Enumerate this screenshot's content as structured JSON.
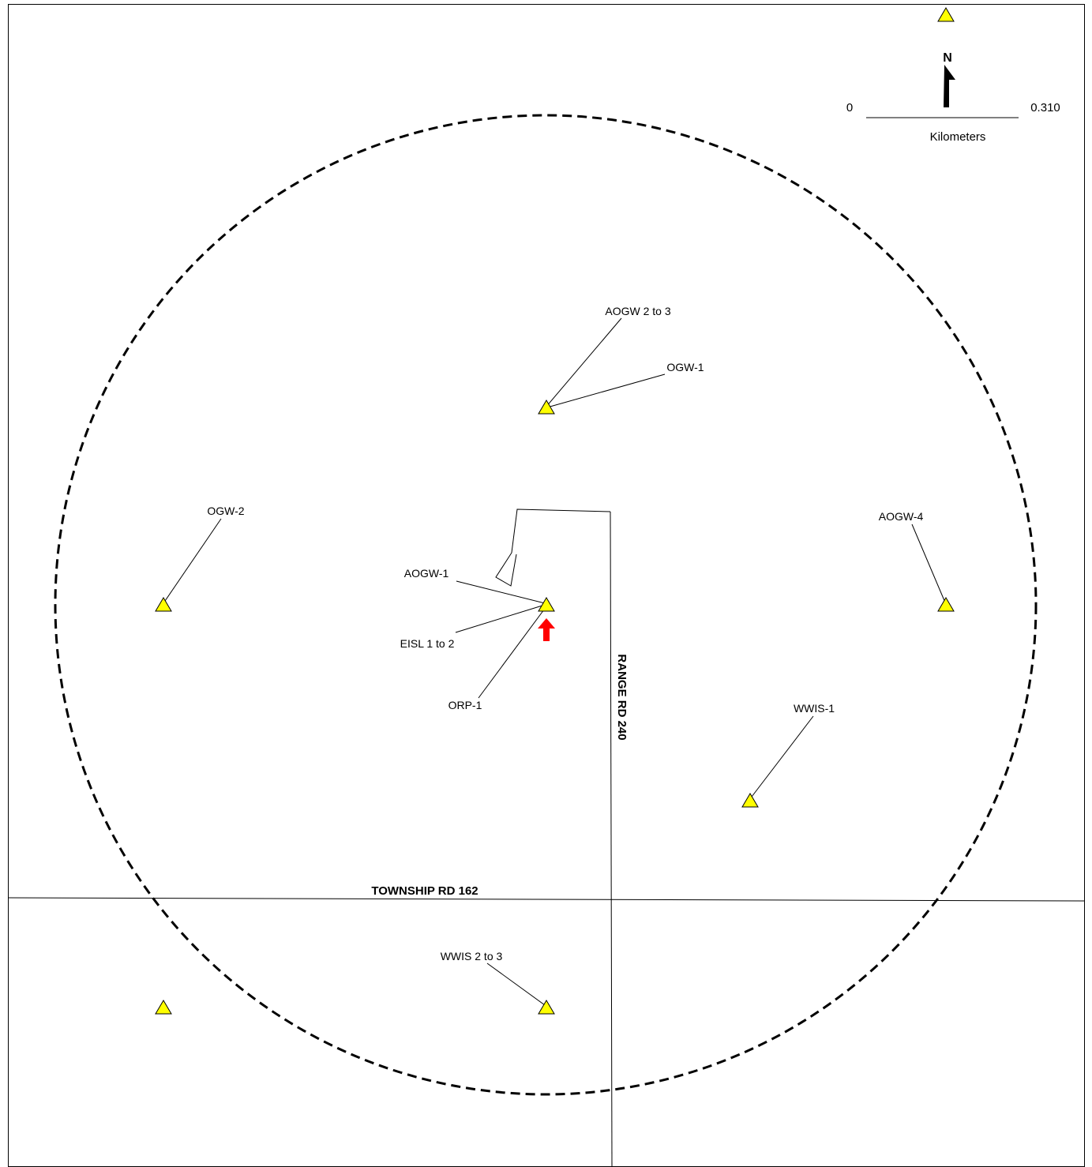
{
  "scale_bar": {
    "start_label": "0",
    "end_label": "0.310",
    "unit_label": "Kilometers"
  },
  "north_arrow": {
    "label": "N"
  },
  "roads": {
    "range_road": "RANGE RD 240",
    "township_road": "TOWNSHIP RD 162"
  },
  "well_labels": {
    "aogw_2_3": "AOGW 2 to 3",
    "ogw_1": "OGW-1",
    "ogw_2": "OGW-2",
    "aogw_4": "AOGW-4",
    "aogw_1": "AOGW-1",
    "eisl_1_2": "EISL 1 to 2",
    "orp_1": "ORP-1",
    "wwis_1": "WWIS-1",
    "wwis_2_3": "WWIS 2 to 3"
  },
  "colors": {
    "well_symbol": "#ffff00",
    "site_marker": "#ff0000",
    "buffer_circle": "#000000"
  },
  "icons": {
    "well": "yellow-triangle",
    "site": "red-up-arrow",
    "north": "north-arrow"
  }
}
